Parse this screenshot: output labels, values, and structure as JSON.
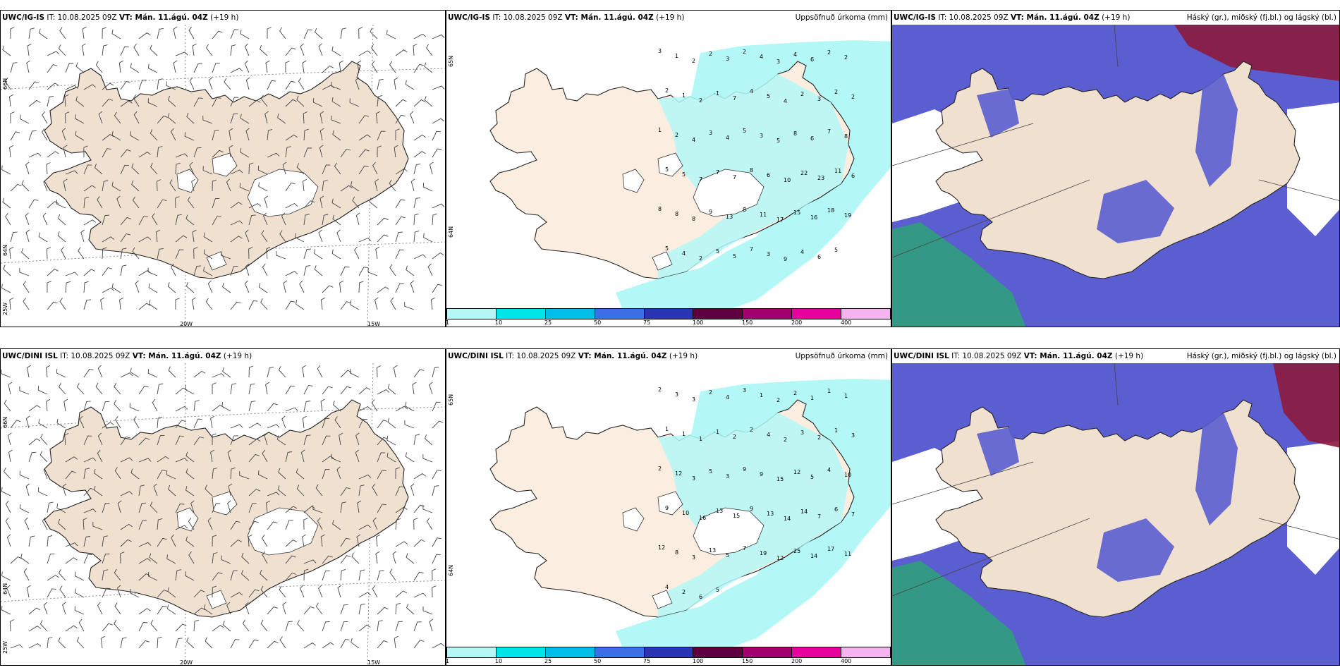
{
  "panels": [
    {
      "id": "r1c1",
      "model": "UWC/IG-IS",
      "it": "IT: 10.08.2025 09Z",
      "vt": "VT: Mán. 11.ágú. 04Z",
      "lead": "(+19 h)",
      "right_title": ""
    },
    {
      "id": "r1c2",
      "model": "UWC/IG-IS",
      "it": "IT: 10.08.2025 09Z",
      "vt": "VT: Mán. 11.ágú. 04Z",
      "lead": "(+19 h)",
      "right_title": "Uppsöfnuð úrkoma (mm)"
    },
    {
      "id": "r1c3",
      "model": "UWC/IG-IS",
      "it": "IT: 10.08.2025 09Z",
      "vt": "VT: Mán. 11.ágú. 04Z",
      "lead": "(+19 h)",
      "right_title": "Háský (gr.), miðský (fj.bl.) og lágský (bl.)"
    },
    {
      "id": "r2c1",
      "model": "UWC/DINI ISL",
      "it": "IT: 10.08.2025 09Z",
      "vt": "VT: Mán. 11.ágú. 04Z",
      "lead": "(+19 h)",
      "right_title": ""
    },
    {
      "id": "r2c2",
      "model": "UWC/DINI ISL",
      "it": "IT: 10.08.2025 09Z",
      "vt": "VT: Mán. 11.ágú. 04Z",
      "lead": "(+19 h)",
      "right_title": "Uppsöfnuð úrkoma (mm)"
    },
    {
      "id": "r2c3",
      "model": "UWC/DINI ISL",
      "it": "IT: 10.08.2025 09Z",
      "vt": "VT: Mán. 11.ágú. 04Z",
      "lead": "(+19 h)",
      "right_title": "Háský (gr.), miðský (fj.bl.) og lágský (bl.)"
    }
  ],
  "grid_labels": {
    "lat_66": "66N",
    "lat_64": "64N",
    "lon_25": "25W",
    "lon_20": "20W",
    "lon_15": "15W",
    "lat_65": "65N",
    "lat_64b": "64N"
  },
  "colorbar": {
    "labels": [
      "1",
      "10",
      "25",
      "50",
      "75",
      "100",
      "150",
      "200",
      "400"
    ],
    "colors": [
      "#b3f7f7",
      "#00e5e5",
      "#00bfe6",
      "#3c6fe6",
      "#2a35b5",
      "#5c0040",
      "#a0006e",
      "#e6009e",
      "#f5b3f0"
    ]
  },
  "colors": {
    "land": "#f0e0d0",
    "land_precip": "#fbeee0",
    "precip_light": "#b3f7f7",
    "cloud_mid": "#5a5ed0",
    "cloud_high_red": "#8c1a3c",
    "cloud_low_green": "#2aa870",
    "ice": "#ffffff"
  },
  "precip_top": [
    "3",
    "1",
    "2",
    "2",
    "3",
    "2",
    "4",
    "3",
    "4",
    "6",
    "2",
    "2",
    "2",
    "1",
    "2",
    "1",
    "7",
    "4",
    "5",
    "4",
    "2",
    "3",
    "2",
    "2",
    "1",
    "2",
    "4",
    "3",
    "4",
    "5",
    "3",
    "5",
    "8",
    "6",
    "7",
    "8",
    "5",
    "5",
    "7",
    "7",
    "7",
    "8",
    "6",
    "10",
    "22",
    "23",
    "11",
    "6",
    "8",
    "8",
    "8",
    "9",
    "13",
    "8",
    "11",
    "17",
    "15",
    "16",
    "18",
    "19",
    "5",
    "4",
    "2",
    "5",
    "5",
    "7",
    "3",
    "9",
    "4",
    "6",
    "5"
  ],
  "precip_bottom": [
    "2",
    "3",
    "3",
    "2",
    "4",
    "3",
    "1",
    "2",
    "2",
    "1",
    "1",
    "1",
    "1",
    "1",
    "1",
    "1",
    "2",
    "2",
    "4",
    "2",
    "3",
    "2",
    "1",
    "3",
    "2",
    "12",
    "3",
    "5",
    "3",
    "9",
    "9",
    "15",
    "12",
    "5",
    "4",
    "10",
    "9",
    "10",
    "16",
    "13",
    "15",
    "9",
    "13",
    "14",
    "14",
    "7",
    "6",
    "7",
    "12",
    "8",
    "3",
    "13",
    "5",
    "7",
    "19",
    "12",
    "25",
    "14",
    "17",
    "11",
    "4",
    "2",
    "6",
    "5"
  ]
}
